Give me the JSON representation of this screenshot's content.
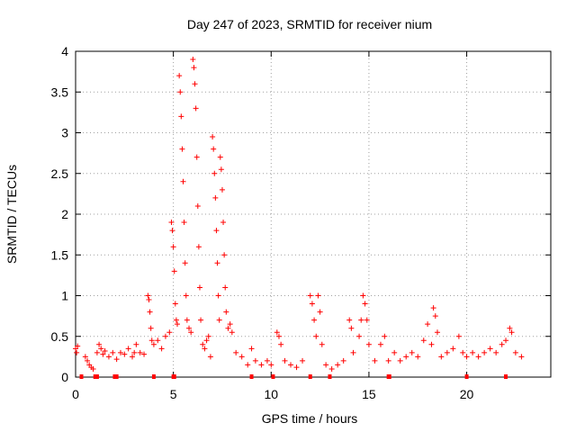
{
  "chart_data": {
    "type": "scatter",
    "title": "Day 247 of 2023, SRMTID for receiver nium",
    "xlabel": "GPS time / hours",
    "ylabel": "SRMTID / TECUs",
    "xlim": [
      0,
      24.3
    ],
    "ylim": [
      0,
      4
    ],
    "x_ticks": [
      0,
      5,
      10,
      15,
      20
    ],
    "x_tick_labels": [
      "0",
      "5",
      "10",
      "15",
      "20"
    ],
    "y_ticks": [
      0,
      0.5,
      1,
      1.5,
      2,
      2.5,
      3,
      3.5,
      4
    ],
    "y_tick_labels": [
      "0",
      "0.5",
      "1",
      "1.5",
      "2",
      "2.5",
      "3",
      "3.5",
      "4"
    ],
    "grid": true,
    "marker": "plus",
    "color": "#ff0000",
    "series": [
      {
        "name": "SRMTID",
        "points": [
          [
            0.0,
            0.35
          ],
          [
            0.05,
            0.3
          ],
          [
            0.1,
            0.38
          ],
          [
            0.5,
            0.25
          ],
          [
            0.6,
            0.2
          ],
          [
            0.7,
            0.15
          ],
          [
            0.8,
            0.12
          ],
          [
            0.9,
            0.1
          ],
          [
            1.1,
            0.3
          ],
          [
            1.2,
            0.4
          ],
          [
            1.3,
            0.35
          ],
          [
            1.4,
            0.28
          ],
          [
            1.5,
            0.32
          ],
          [
            1.7,
            0.25
          ],
          [
            1.9,
            0.3
          ],
          [
            2.1,
            0.22
          ],
          [
            2.3,
            0.3
          ],
          [
            2.5,
            0.28
          ],
          [
            2.7,
            0.35
          ],
          [
            2.9,
            0.25
          ],
          [
            3.0,
            0.3
          ],
          [
            3.1,
            0.4
          ],
          [
            3.3,
            0.3
          ],
          [
            3.5,
            0.28
          ],
          [
            3.7,
            1.0
          ],
          [
            3.75,
            0.95
          ],
          [
            3.8,
            0.8
          ],
          [
            3.85,
            0.6
          ],
          [
            3.9,
            0.45
          ],
          [
            4.0,
            0.4
          ],
          [
            4.2,
            0.45
          ],
          [
            4.4,
            0.35
          ],
          [
            4.6,
            0.5
          ],
          [
            4.8,
            0.55
          ],
          [
            4.9,
            1.9
          ],
          [
            4.95,
            1.8
          ],
          [
            5.0,
            1.6
          ],
          [
            5.05,
            1.3
          ],
          [
            5.1,
            0.9
          ],
          [
            5.15,
            0.7
          ],
          [
            5.2,
            0.65
          ],
          [
            5.3,
            3.7
          ],
          [
            5.35,
            3.5
          ],
          [
            5.4,
            3.2
          ],
          [
            5.45,
            2.8
          ],
          [
            5.5,
            2.4
          ],
          [
            5.55,
            1.9
          ],
          [
            5.6,
            1.4
          ],
          [
            5.65,
            1.0
          ],
          [
            5.7,
            0.7
          ],
          [
            5.8,
            0.6
          ],
          [
            5.9,
            0.55
          ],
          [
            6.0,
            3.9
          ],
          [
            6.05,
            3.8
          ],
          [
            6.1,
            3.6
          ],
          [
            6.15,
            3.3
          ],
          [
            6.2,
            2.7
          ],
          [
            6.25,
            2.1
          ],
          [
            6.3,
            1.6
          ],
          [
            6.35,
            1.1
          ],
          [
            6.4,
            0.7
          ],
          [
            6.5,
            0.4
          ],
          [
            6.6,
            0.35
          ],
          [
            6.7,
            0.45
          ],
          [
            6.8,
            0.5
          ],
          [
            6.9,
            0.25
          ],
          [
            7.0,
            2.95
          ],
          [
            7.05,
            2.8
          ],
          [
            7.1,
            2.5
          ],
          [
            7.15,
            2.2
          ],
          [
            7.2,
            1.8
          ],
          [
            7.25,
            1.4
          ],
          [
            7.3,
            1.0
          ],
          [
            7.35,
            0.7
          ],
          [
            7.4,
            2.7
          ],
          [
            7.45,
            2.55
          ],
          [
            7.5,
            2.3
          ],
          [
            7.55,
            1.9
          ],
          [
            7.6,
            1.5
          ],
          [
            7.65,
            1.1
          ],
          [
            7.7,
            0.8
          ],
          [
            7.8,
            0.6
          ],
          [
            7.9,
            0.65
          ],
          [
            8.0,
            0.55
          ],
          [
            8.2,
            0.3
          ],
          [
            8.5,
            0.25
          ],
          [
            8.8,
            0.15
          ],
          [
            9.0,
            0.35
          ],
          [
            9.2,
            0.2
          ],
          [
            9.5,
            0.15
          ],
          [
            9.8,
            0.2
          ],
          [
            10.0,
            0.15
          ],
          [
            10.3,
            0.55
          ],
          [
            10.4,
            0.5
          ],
          [
            10.5,
            0.4
          ],
          [
            10.7,
            0.2
          ],
          [
            11.0,
            0.15
          ],
          [
            11.3,
            0.12
          ],
          [
            11.6,
            0.2
          ],
          [
            12.0,
            1.0
          ],
          [
            12.1,
            0.9
          ],
          [
            12.2,
            0.7
          ],
          [
            12.3,
            0.5
          ],
          [
            12.4,
            1.0
          ],
          [
            12.5,
            0.8
          ],
          [
            12.6,
            0.4
          ],
          [
            12.8,
            0.15
          ],
          [
            13.1,
            0.1
          ],
          [
            13.4,
            0.15
          ],
          [
            13.7,
            0.2
          ],
          [
            14.0,
            0.7
          ],
          [
            14.1,
            0.6
          ],
          [
            14.2,
            0.3
          ],
          [
            14.5,
            0.5
          ],
          [
            14.6,
            0.7
          ],
          [
            14.7,
            1.0
          ],
          [
            14.8,
            0.9
          ],
          [
            14.9,
            0.7
          ],
          [
            15.0,
            0.4
          ],
          [
            15.3,
            0.2
          ],
          [
            15.6,
            0.4
          ],
          [
            15.8,
            0.5
          ],
          [
            16.0,
            0.2
          ],
          [
            16.3,
            0.3
          ],
          [
            16.6,
            0.2
          ],
          [
            16.9,
            0.25
          ],
          [
            17.2,
            0.3
          ],
          [
            17.5,
            0.25
          ],
          [
            17.8,
            0.45
          ],
          [
            18.0,
            0.65
          ],
          [
            18.2,
            0.4
          ],
          [
            18.3,
            0.85
          ],
          [
            18.4,
            0.75
          ],
          [
            18.5,
            0.55
          ],
          [
            18.7,
            0.25
          ],
          [
            19.0,
            0.3
          ],
          [
            19.3,
            0.35
          ],
          [
            19.6,
            0.5
          ],
          [
            19.8,
            0.3
          ],
          [
            20.0,
            0.25
          ],
          [
            20.3,
            0.3
          ],
          [
            20.6,
            0.25
          ],
          [
            20.9,
            0.3
          ],
          [
            21.2,
            0.35
          ],
          [
            21.5,
            0.3
          ],
          [
            21.8,
            0.4
          ],
          [
            22.0,
            0.45
          ],
          [
            22.2,
            0.6
          ],
          [
            22.3,
            0.55
          ],
          [
            22.5,
            0.3
          ],
          [
            22.8,
            0.25
          ]
        ],
        "zero_points": [
          0.3,
          1.0,
          1.1,
          2.0,
          2.1,
          4.0,
          5.0,
          5.05,
          9.0,
          10.1,
          12.0,
          13.0,
          16.0,
          16.05,
          20.0,
          22.0
        ]
      }
    ]
  }
}
